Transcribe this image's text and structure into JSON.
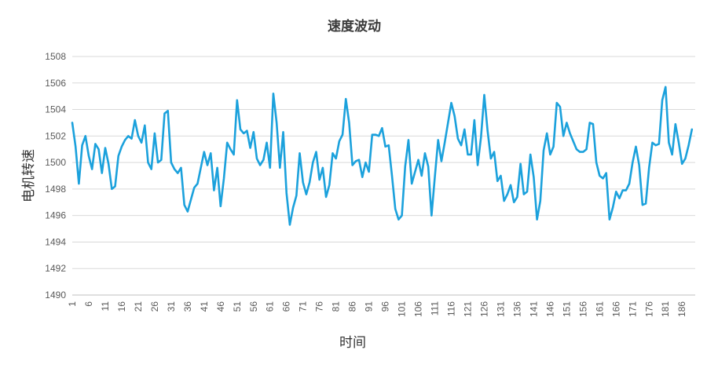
{
  "chart_data": {
    "type": "line",
    "title": "速度波动",
    "xlabel": "时间",
    "ylabel": "电机转速",
    "ylim": [
      1490,
      1508
    ],
    "yticks": [
      1490,
      1492,
      1494,
      1496,
      1498,
      1500,
      1502,
      1504,
      1506,
      1508
    ],
    "xlim": [
      1,
      190
    ],
    "xticks": [
      1,
      6,
      11,
      16,
      21,
      26,
      31,
      36,
      41,
      46,
      51,
      56,
      61,
      66,
      71,
      76,
      81,
      86,
      91,
      96,
      101,
      106,
      111,
      116,
      121,
      126,
      131,
      136,
      141,
      146,
      151,
      156,
      161,
      166,
      171,
      176,
      181,
      186
    ],
    "grid": true,
    "legend": "none",
    "color": "#1ba1dc",
    "series": [
      {
        "values": [
          1503.0,
          1501.2,
          1498.4,
          1501.3,
          1502.0,
          1500.5,
          1499.5,
          1501.4,
          1501.0,
          1499.2,
          1501.1,
          1499.9,
          1498.0,
          1498.2,
          1500.5,
          1501.2,
          1501.7,
          1502.0,
          1501.8,
          1503.2,
          1502.0,
          1501.5,
          1502.8,
          1500.0,
          1499.5,
          1502.2,
          1500.0,
          1500.2,
          1503.7,
          1503.9,
          1500.0,
          1499.5,
          1499.2,
          1499.6,
          1496.8,
          1496.3,
          1497.2,
          1498.1,
          1498.4,
          1499.6,
          1500.8,
          1499.8,
          1500.7,
          1497.9,
          1499.6,
          1496.7,
          1498.8,
          1501.5,
          1501.0,
          1500.6,
          1504.7,
          1502.5,
          1502.2,
          1502.4,
          1501.1,
          1502.3,
          1500.3,
          1499.8,
          1500.2,
          1501.5,
          1499.6,
          1505.2,
          1503.0,
          1499.6,
          1502.3,
          1497.7,
          1495.3,
          1496.6,
          1497.5,
          1500.7,
          1498.5,
          1497.6,
          1498.5,
          1500.0,
          1500.8,
          1498.7,
          1499.6,
          1497.4,
          1498.3,
          1500.7,
          1500.3,
          1501.6,
          1502.1,
          1504.8,
          1503.0,
          1499.8,
          1500.1,
          1500.2,
          1498.9,
          1500.0,
          1499.3,
          1502.1,
          1502.1,
          1502.0,
          1502.6,
          1501.2,
          1501.3,
          1499.0,
          1496.5,
          1495.7,
          1496.0,
          1499.7,
          1501.7,
          1498.4,
          1499.3,
          1500.2,
          1499.0,
          1500.7,
          1499.7,
          1496.0,
          1498.9,
          1501.7,
          1500.1,
          1501.5,
          1503.0,
          1504.5,
          1503.5,
          1501.8,
          1501.3,
          1502.5,
          1500.6,
          1500.6,
          1503.2,
          1499.8,
          1501.9,
          1505.1,
          1502.4,
          1500.3,
          1500.8,
          1498.6,
          1499.0,
          1497.1,
          1497.6,
          1498.3,
          1497.0,
          1497.4,
          1499.9,
          1497.6,
          1497.8,
          1500.6,
          1498.9,
          1495.7,
          1497.1,
          1500.9,
          1502.2,
          1500.6,
          1501.2,
          1504.5,
          1504.2,
          1502.0,
          1503.0,
          1502.2,
          1501.6,
          1501.0,
          1500.8,
          1500.8,
          1501.0,
          1503.0,
          1502.9,
          1500.0,
          1499.0,
          1498.8,
          1499.2,
          1495.7,
          1496.6,
          1497.8,
          1497.3,
          1497.9,
          1497.9,
          1498.4,
          1500.0,
          1501.2,
          1499.8,
          1496.8,
          1496.9,
          1499.6,
          1501.5,
          1501.3,
          1501.4,
          1504.7,
          1505.7,
          1501.5,
          1500.6,
          1502.9,
          1501.5,
          1499.9,
          1500.3,
          1501.3,
          1502.5
        ]
      }
    ]
  }
}
